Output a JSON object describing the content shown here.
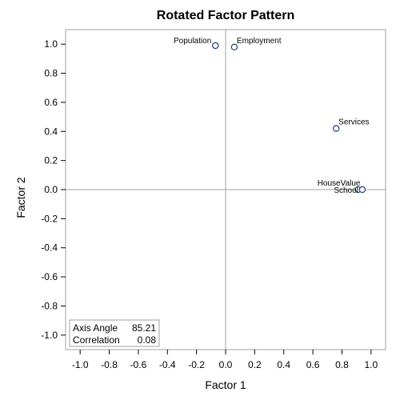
{
  "chart_data": {
    "type": "scatter",
    "title": "Rotated Factor Pattern",
    "xlabel": "Factor 1",
    "ylabel": "Factor 2",
    "xlim": [
      -1.1,
      1.1
    ],
    "ylim": [
      -1.1,
      1.1
    ],
    "xticks": [
      -1.0,
      -0.8,
      -0.6,
      -0.4,
      -0.2,
      0.0,
      0.2,
      0.4,
      0.6,
      0.8,
      1.0
    ],
    "yticks": [
      -1.0,
      -0.8,
      -0.6,
      -0.4,
      -0.2,
      0.0,
      0.2,
      0.4,
      0.6,
      0.8,
      1.0
    ],
    "xtick_labels": [
      "-1.0",
      "-0.8",
      "-0.6",
      "-0.4",
      "-0.2",
      "0.0",
      "0.2",
      "0.4",
      "0.6",
      "0.8",
      "1.0"
    ],
    "ytick_labels": [
      "-1.0",
      "-0.8",
      "-0.6",
      "-0.4",
      "-0.2",
      "0.0",
      "0.2",
      "0.4",
      "0.6",
      "0.8",
      "1.0"
    ],
    "grid": false,
    "reference_lines": [
      {
        "axis": "x",
        "value": 0
      },
      {
        "axis": "y",
        "value": 0
      }
    ],
    "points": [
      {
        "label": "Population",
        "x": -0.07,
        "y": 0.99,
        "label_side": "left"
      },
      {
        "label": "Employment",
        "x": 0.06,
        "y": 0.98,
        "label_side": "right"
      },
      {
        "label": "Services",
        "x": 0.76,
        "y": 0.42,
        "label_side": "right"
      },
      {
        "label": "HouseValue",
        "x": 0.91,
        "y": 0.0,
        "label_side": "above-left"
      },
      {
        "label": "School",
        "x": 0.94,
        "y": 0.0,
        "label_side": "left"
      }
    ],
    "inset": {
      "placement": "bottom-left",
      "rows": [
        {
          "label": "Axis Angle",
          "value": "85.21"
        },
        {
          "label": "Correlation",
          "value": "0.08"
        }
      ]
    },
    "colors": {
      "marker_stroke": "#1f3f7a",
      "reference_line": "#a0a0a0",
      "frame": "#a0a0a0"
    }
  }
}
